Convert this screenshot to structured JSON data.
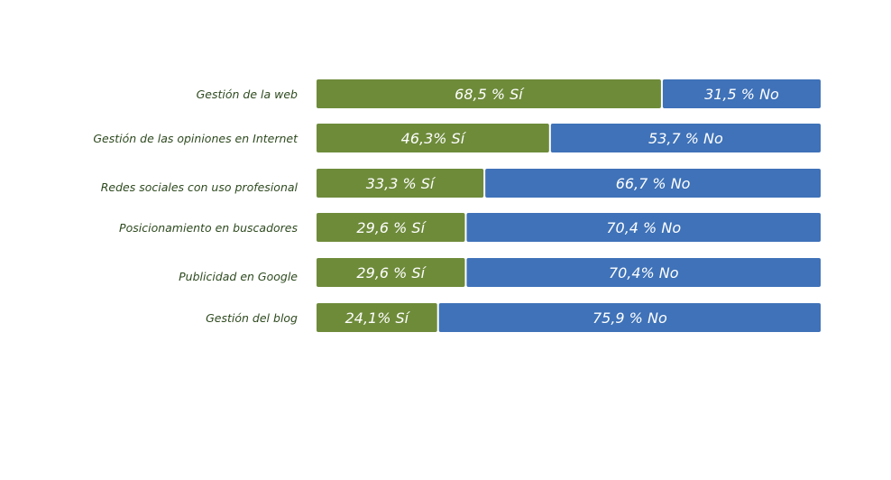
{
  "colors": {
    "si": "#6e8b3a",
    "no": "#3f72b8",
    "label": "#2e4a1f"
  },
  "chart_data": {
    "type": "bar",
    "orientation": "horizontal",
    "stacked": true,
    "xlim": [
      0,
      100
    ],
    "grid": false,
    "legend": "none",
    "categories": [
      "Gestión de la web",
      "Gestión de las opiniones en Internet",
      "Redes sociales con uso profesional",
      "Posicionamiento en buscadores",
      "Publicidad en Google",
      "Gestión del blog"
    ],
    "series": [
      {
        "values": [
          68.5,
          46.3,
          33.3,
          29.6,
          29.6,
          24.1
        ],
        "data_labels": [
          "68,5 %  Sí",
          "46,3%  Sí",
          "33,3 %  Sí",
          "29,6 %  Sí",
          "29,6 %  Sí",
          "24,1%  Sí"
        ]
      },
      {
        "values": [
          31.5,
          53.7,
          66.7,
          70.4,
          70.4,
          75.9
        ],
        "data_labels": [
          "31,5 %  No",
          "53,7 %  No",
          "66,7 %  No",
          "70,4 %  No",
          "70,4%  No",
          "75,9 %  No"
        ]
      }
    ]
  }
}
